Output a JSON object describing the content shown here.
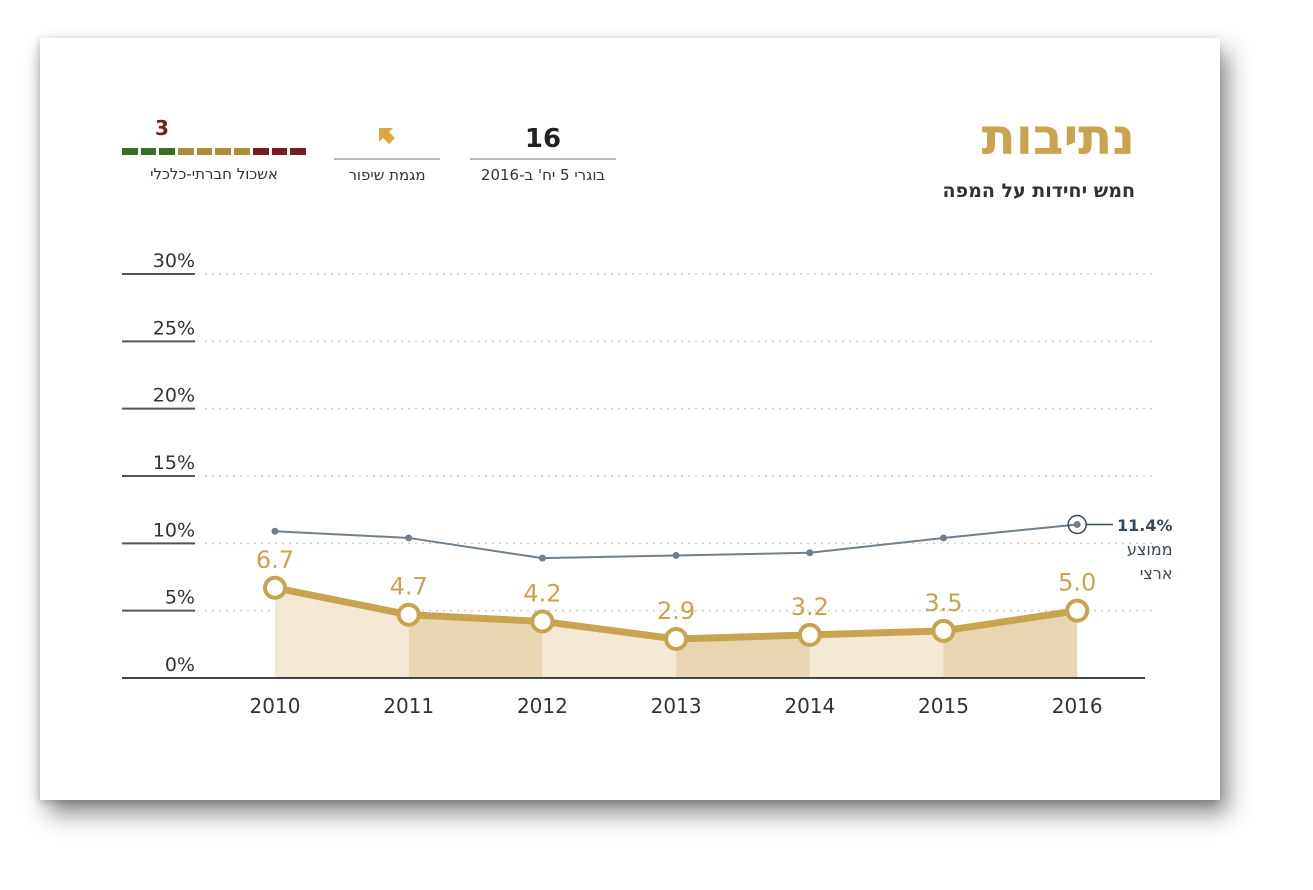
{
  "header": {
    "title": "נתיבות",
    "subtitle": "חמש יחידות על המפה"
  },
  "stats": {
    "graduates": {
      "value": "16",
      "label": "בוגרי 5 יח' ב-2016"
    },
    "trend": {
      "icon": "arrow-up-left-icon",
      "label": "מגמת שיפור"
    },
    "cluster": {
      "value": "3",
      "label": "אשכול חברתי-כלכלי",
      "scale": 10,
      "colors": [
        "#7a1a22",
        "#7a1a22",
        "#7a1a22",
        "#b38a3c",
        "#b38a3c",
        "#b38a3c",
        "#b38a3c",
        "#3d6b22",
        "#3d6b22",
        "#3d6b22"
      ]
    }
  },
  "chart_data": {
    "type": "line",
    "x": [
      "2010",
      "2011",
      "2012",
      "2013",
      "2014",
      "2015",
      "2016"
    ],
    "ylim": [
      0,
      30
    ],
    "yticks": [
      "0%",
      "5%",
      "10%",
      "15%",
      "20%",
      "25%",
      "30%"
    ],
    "series": [
      {
        "name": "נתיבות",
        "values": [
          6.7,
          4.7,
          4.2,
          2.9,
          3.2,
          3.5,
          5.0
        ],
        "labels": [
          "6.7",
          "4.7",
          "4.2",
          "2.9",
          "3.2",
          "3.5",
          "5.0"
        ],
        "color": "#c9a34e"
      },
      {
        "name": "ממוצע ארצי",
        "values": [
          10.9,
          10.4,
          8.9,
          9.1,
          9.3,
          10.4,
          11.4
        ],
        "color": "#6f7f8c"
      }
    ],
    "national_avg": {
      "value": "11.4%",
      "label_line1": "ממוצע",
      "label_line2": "ארצי"
    }
  }
}
